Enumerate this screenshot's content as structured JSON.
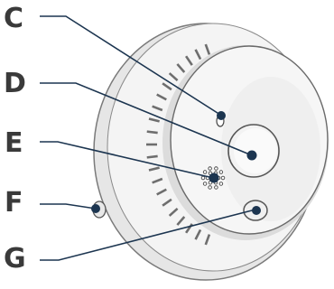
{
  "callouts": [
    {
      "id": "C",
      "letter": "C"
    },
    {
      "id": "D",
      "letter": "D"
    },
    {
      "id": "E",
      "letter": "E"
    },
    {
      "id": "F",
      "letter": "F"
    },
    {
      "id": "G",
      "letter": "G"
    }
  ],
  "colors": {
    "line": "#1c3550",
    "dot": "#1c3550",
    "text": "#3a3a3a",
    "device_fill": "#f7f7f7",
    "device_edge": "#6a6a6a",
    "shadow": "#d9d9d9"
  }
}
